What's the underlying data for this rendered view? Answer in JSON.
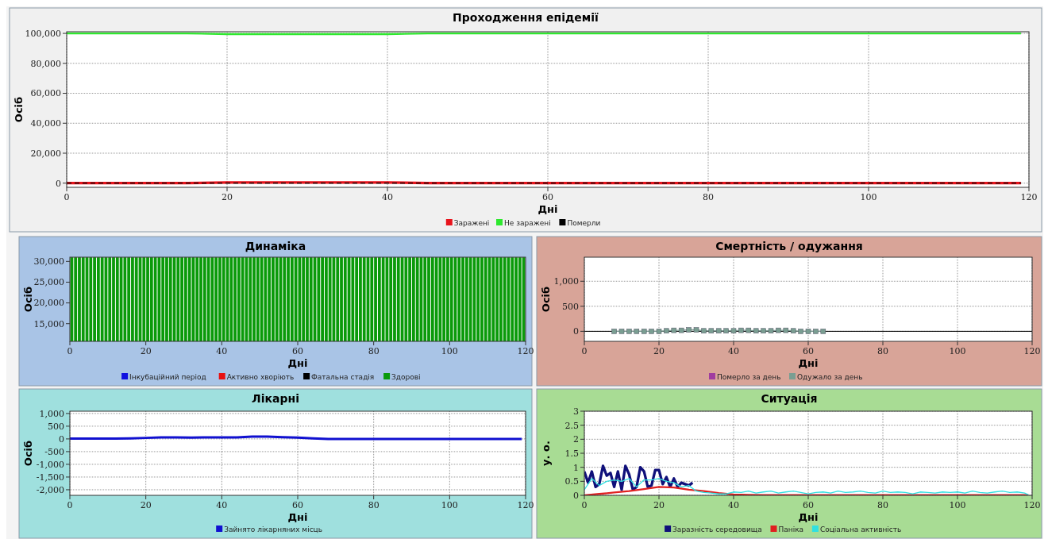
{
  "chart_data": [
    {
      "type": "line",
      "title": "Проходження епідемії",
      "xlabel": "Дні",
      "ylabel": "Осіб",
      "xlim": [
        0,
        120
      ],
      "xticks": [
        0,
        20,
        40,
        60,
        80,
        100,
        120
      ],
      "ylim": [
        -2800,
        101100
      ],
      "yticks": [
        0,
        {
          "value": 20000,
          "label": "20,000"
        },
        {
          "value": 40000,
          "label": "40,000"
        },
        {
          "value": 60000,
          "label": "60,000"
        },
        {
          "value": 80000,
          "label": "80,000"
        },
        {
          "value": 100000,
          "label": "100,000"
        }
      ],
      "grid": true,
      "legend": "bottom",
      "x": [
        0,
        5,
        10,
        15,
        20,
        25,
        30,
        35,
        40,
        45,
        50,
        55,
        60,
        65,
        70,
        75,
        80,
        85,
        90,
        95,
        100,
        105,
        110,
        115,
        119
      ],
      "series": [
        {
          "name": "Заражені",
          "color": "#e8141c",
          "values": [
            0,
            0,
            0,
            0,
            500,
            500,
            500,
            500,
            500,
            0,
            0,
            0,
            0,
            0,
            0,
            0,
            0,
            0,
            0,
            0,
            0,
            0,
            0,
            0,
            0
          ]
        },
        {
          "name": "Не заражені",
          "color": "#2ee82e",
          "values": [
            100000,
            100000,
            100000,
            100000,
            99500,
            99500,
            99500,
            99500,
            99500,
            100000,
            100000,
            100000,
            100000,
            100000,
            100000,
            100000,
            100000,
            100000,
            100000,
            100000,
            100000,
            100000,
            100000,
            100000,
            100000
          ]
        },
        {
          "name": "Померли",
          "color": "#000000",
          "line_style": "dashed",
          "values": [
            0,
            0,
            0,
            0,
            0,
            0,
            0,
            0,
            0,
            0,
            0,
            0,
            0,
            0,
            0,
            0,
            0,
            0,
            0,
            0,
            0,
            0,
            0,
            0,
            0
          ]
        }
      ]
    },
    {
      "type": "bar",
      "title": "Динаміка",
      "xlabel": "Дні",
      "ylabel": "Осіб",
      "xlim": [
        0,
        120
      ],
      "xticks": [
        0,
        20,
        40,
        60,
        80,
        100,
        120
      ],
      "ylim": [
        10740,
        31020
      ],
      "yticks": [
        {
          "value": 15000,
          "label": "15,000"
        },
        {
          "value": 20000,
          "label": "20,000"
        },
        {
          "value": 25000,
          "label": "25,000"
        },
        {
          "value": 30000,
          "label": "30,000"
        }
      ],
      "legend": "bottom",
      "x": [
        0,
        1,
        2,
        3,
        4,
        5,
        6,
        7,
        8,
        9,
        10,
        11,
        12,
        13,
        14,
        15,
        16,
        17,
        18,
        19,
        20,
        21,
        22,
        23,
        24,
        25,
        26,
        27,
        28,
        29,
        30,
        31,
        32,
        33,
        34,
        35,
        36,
        37,
        38,
        39,
        40,
        41,
        42,
        43,
        44,
        45,
        46,
        47,
        48,
        49,
        50,
        51,
        52,
        53,
        54,
        55,
        56,
        57,
        58,
        59,
        60,
        61,
        62,
        63,
        64,
        65,
        66,
        67,
        68,
        69,
        70,
        71,
        72,
        73,
        74,
        75,
        76,
        77,
        78,
        79,
        80,
        81,
        82,
        83,
        84,
        85,
        86,
        87,
        88,
        89,
        90,
        91,
        92,
        93,
        94,
        95,
        96,
        97,
        98,
        99,
        100,
        101,
        102,
        103,
        104,
        105,
        106,
        107,
        108,
        109,
        110,
        111,
        112,
        113,
        114,
        115,
        116,
        117,
        118,
        119
      ],
      "series": [
        {
          "name": "Інкубаційний період",
          "color": "#1010e0",
          "values": [
            null,
            null,
            null,
            null,
            null,
            null,
            null,
            null,
            null,
            null,
            null,
            null,
            null,
            null,
            null,
            null,
            null,
            null,
            null,
            null,
            null,
            null,
            null,
            null,
            null,
            null,
            null,
            null,
            null,
            null,
            null,
            null,
            null,
            null,
            null,
            null,
            null,
            null,
            null,
            null,
            null,
            null,
            null,
            null,
            null,
            null,
            null,
            null,
            null,
            null,
            null,
            null,
            null,
            null,
            null,
            null,
            null,
            null,
            null,
            null,
            null,
            null,
            null,
            null,
            null,
            null,
            null,
            null,
            null,
            null,
            null,
            null,
            null,
            null,
            null,
            null,
            null,
            null,
            null,
            null,
            null,
            null,
            null,
            null,
            null,
            null,
            null,
            null,
            null,
            null,
            null,
            null,
            null,
            null,
            null,
            null,
            null,
            null,
            null,
            null,
            null,
            null,
            null,
            null,
            null,
            null,
            null,
            null,
            null,
            null,
            null,
            null,
            null,
            null,
            null,
            null,
            null,
            null,
            null,
            null
          ]
        },
        {
          "name": "Активно хворіють",
          "color": "#e81010",
          "values": [
            null,
            null,
            null,
            null,
            null,
            null,
            null,
            null,
            null,
            null,
            null,
            null,
            null,
            null,
            null,
            null,
            null,
            null,
            null,
            null,
            null,
            null,
            null,
            null,
            null,
            null,
            null,
            null,
            null,
            null,
            null,
            null,
            null,
            null,
            null,
            null,
            null,
            null,
            null,
            null,
            null,
            null,
            null,
            null,
            null,
            null,
            null,
            null,
            null,
            null,
            null,
            null,
            null,
            null,
            null,
            null,
            null,
            null,
            null,
            null,
            null,
            null,
            null,
            null,
            null,
            null,
            null,
            null,
            null,
            null,
            null,
            null,
            null,
            null,
            null,
            null,
            null,
            null,
            null,
            null,
            null,
            null,
            null,
            null,
            null,
            null,
            null,
            null,
            null,
            null,
            null,
            null,
            null,
            null,
            null,
            null,
            null,
            null,
            null,
            null,
            null,
            null,
            null,
            null,
            null,
            null,
            null,
            null,
            null,
            null,
            null,
            null,
            null,
            null,
            null,
            null,
            null,
            null,
            null,
            null
          ]
        },
        {
          "name": "Фатальна стадія",
          "color": "#000000",
          "values": [
            null,
            null,
            null,
            null,
            null,
            null,
            null,
            null,
            null,
            null,
            null,
            null,
            null,
            null,
            null,
            null,
            null,
            null,
            null,
            null,
            null,
            null,
            null,
            null,
            null,
            null,
            null,
            null,
            null,
            null,
            null,
            null,
            null,
            null,
            null,
            null,
            null,
            null,
            null,
            null,
            null,
            null,
            null,
            null,
            null,
            null,
            null,
            null,
            null,
            null,
            null,
            null,
            null,
            null,
            null,
            null,
            null,
            null,
            null,
            null,
            null,
            null,
            null,
            null,
            null,
            null,
            null,
            null,
            null,
            null,
            null,
            null,
            null,
            null,
            null,
            null,
            null,
            null,
            null,
            null,
            null,
            null,
            null,
            null,
            null,
            null,
            null,
            null,
            null,
            null,
            null,
            null,
            null,
            null,
            null,
            null,
            null,
            null,
            null,
            null,
            null,
            null,
            null,
            null,
            null,
            null,
            null,
            null,
            null,
            null,
            null,
            null,
            null,
            null,
            null,
            null,
            null,
            null,
            null,
            null
          ]
        },
        {
          "name": "Здорові",
          "color": "#0a9a0a",
          "values": [
            31000,
            31000,
            31000,
            31000,
            31000,
            31000,
            31000,
            31000,
            31000,
            31000,
            31000,
            31000,
            31000,
            31000,
            31000,
            31000,
            31000,
            31000,
            31000,
            31000,
            31000,
            31000,
            31000,
            31000,
            31000,
            31000,
            31000,
            31000,
            31000,
            31000,
            31000,
            31000,
            31000,
            31000,
            31000,
            31000,
            31000,
            31000,
            31000,
            31000,
            31000,
            31000,
            31000,
            31000,
            31000,
            31000,
            31000,
            31000,
            31000,
            31000,
            31000,
            31000,
            31000,
            31000,
            31000,
            31000,
            31000,
            31000,
            31000,
            31000,
            31000,
            31000,
            31000,
            31000,
            31000,
            31000,
            31000,
            31000,
            31000,
            31000,
            31000,
            31000,
            31000,
            31000,
            31000,
            31000,
            31000,
            31000,
            31000,
            31000,
            31000,
            31000,
            31000,
            31000,
            31000,
            31000,
            31000,
            31000,
            31000,
            31000,
            31000,
            31000,
            31000,
            31000,
            31000,
            31000,
            31000,
            31000,
            31000,
            31000,
            31000,
            31000,
            31000,
            31000,
            31000,
            31000,
            31000,
            31000,
            31000,
            31000,
            31000,
            31000,
            31000,
            31000,
            31000,
            31000,
            31000,
            31000,
            31000,
            31000
          ]
        }
      ]
    },
    {
      "type": "line",
      "title": "Смертність / одужання",
      "xlabel": "Дні",
      "ylabel": "Осіб",
      "xlim": [
        0,
        120
      ],
      "xticks": [
        0,
        20,
        40,
        60,
        80,
        100,
        120
      ],
      "ylim": [
        -200,
        1480
      ],
      "yticks": [
        0,
        500,
        {
          "value": 1000,
          "label": "1,000"
        }
      ],
      "grid": true,
      "legend": "bottom",
      "marker": "square",
      "ref_lines": [
        {
          "axis": "y",
          "value": 0,
          "color": "#000000"
        }
      ],
      "x": [
        8,
        10,
        12,
        14,
        16,
        18,
        20,
        22,
        24,
        26,
        28,
        30,
        32,
        34,
        36,
        38,
        40,
        42,
        44,
        46,
        48,
        50,
        52,
        54,
        56,
        58,
        60,
        62,
        64
      ],
      "series": [
        {
          "name": "Померло за день",
          "color": "#a03ca0",
          "values": [
            null,
            null,
            null,
            null,
            null,
            null,
            null,
            null,
            null,
            null,
            null,
            null,
            null,
            null,
            null,
            null,
            null,
            null,
            null,
            null,
            null,
            null,
            null,
            null,
            null,
            null,
            null,
            null,
            null
          ]
        },
        {
          "name": "Одужало за день",
          "color": "#7a9e92",
          "values": [
            0,
            0,
            0,
            0,
            0,
            0,
            0,
            10,
            20,
            20,
            30,
            30,
            10,
            10,
            10,
            10,
            10,
            20,
            20,
            10,
            10,
            10,
            20,
            20,
            10,
            0,
            0,
            0,
            0
          ]
        }
      ]
    },
    {
      "type": "line",
      "title": "Лікарні",
      "xlabel": "Дні",
      "ylabel": "Осіб",
      "xlim": [
        0,
        120
      ],
      "xticks": [
        0,
        20,
        40,
        60,
        80,
        100,
        120
      ],
      "ylim": [
        -2220,
        1090
      ],
      "yticks": [
        {
          "value": -2000,
          "label": "-2,000"
        },
        {
          "value": -1500,
          "label": "-1,500"
        },
        {
          "value": -1000,
          "label": "-1,000"
        },
        -500,
        0,
        500,
        {
          "value": 1000,
          "label": "1,000"
        }
      ],
      "grid": true,
      "legend": "bottom",
      "x": [
        0,
        4,
        8,
        12,
        16,
        20,
        24,
        28,
        32,
        36,
        40,
        44,
        48,
        52,
        56,
        60,
        64,
        68,
        72,
        76,
        80,
        84,
        88,
        92,
        96,
        100,
        104,
        108,
        112,
        116,
        119
      ],
      "series": [
        {
          "name": "Зайнято лікарняних місць",
          "color": "#1010d0",
          "values": [
            10,
            10,
            10,
            10,
            20,
            40,
            60,
            60,
            50,
            60,
            60,
            60,
            90,
            90,
            70,
            50,
            20,
            0,
            0,
            0,
            0,
            0,
            0,
            0,
            0,
            0,
            0,
            0,
            0,
            0,
            0
          ]
        }
      ]
    },
    {
      "type": "line",
      "title": "Ситуація",
      "xlabel": "Дні",
      "ylabel": "у. о.",
      "xlim": [
        0,
        120
      ],
      "xticks": [
        0,
        20,
        40,
        60,
        80,
        100,
        120
      ],
      "ylim": [
        0,
        3
      ],
      "yticks": [
        0,
        0.5,
        1,
        1.5,
        2,
        2.5,
        3
      ],
      "grid": true,
      "legend": "bottom",
      "series": [
        {
          "name": "Заразність середовища",
          "color": "#10107a",
          "x": [
            0,
            1,
            2,
            3,
            4,
            5,
            6,
            7,
            8,
            9,
            10,
            11,
            12,
            13,
            14,
            15,
            16,
            17,
            18,
            19,
            20,
            21,
            22,
            23,
            24,
            25,
            26,
            27,
            28,
            29
          ],
          "values": [
            0.85,
            0.45,
            0.85,
            0.3,
            0.4,
            1.05,
            0.7,
            0.8,
            0.3,
            0.85,
            0.2,
            1.05,
            0.75,
            0.2,
            0.3,
            1.0,
            0.85,
            0.3,
            0.35,
            0.9,
            0.9,
            0.4,
            0.65,
            0.3,
            0.6,
            0.3,
            0.45,
            0.4,
            0.35,
            0.45
          ]
        },
        {
          "name": "Паніка",
          "color": "#e02020",
          "x": [
            0,
            4,
            8,
            12,
            16,
            20,
            24,
            28,
            32,
            36,
            40,
            44,
            48,
            52,
            56,
            60,
            64,
            68,
            72,
            76,
            80,
            84,
            88,
            92,
            96,
            100,
            104,
            108,
            112,
            116,
            119
          ],
          "values": [
            0,
            0.05,
            0.1,
            0.15,
            0.22,
            0.3,
            0.28,
            0.2,
            0.15,
            0.08,
            0.03,
            0.02,
            0.01,
            0.01,
            0.01,
            0.01,
            0.01,
            0.01,
            0.01,
            0.01,
            0.01,
            0.01,
            0.01,
            0.01,
            0.01,
            0.01,
            0.01,
            0.01,
            0.01,
            0.01,
            0.01
          ]
        },
        {
          "name": "Соціальна активність",
          "color": "#30e0e0",
          "x": [
            0,
            2,
            4,
            6,
            8,
            10,
            12,
            14,
            16,
            18,
            20,
            22,
            24,
            26,
            28,
            30,
            32,
            34,
            36,
            38,
            40,
            42,
            44,
            46,
            48,
            50,
            52,
            54,
            56,
            58,
            60,
            62,
            64,
            66,
            68,
            70,
            72,
            74,
            76,
            78,
            80,
            82,
            84,
            86,
            88,
            90,
            92,
            94,
            96,
            98,
            100,
            102,
            104,
            106,
            108,
            110,
            112,
            114,
            116,
            118,
            119
          ],
          "values": [
            0.2,
            0.6,
            0.35,
            0.5,
            0.55,
            0.5,
            0.6,
            0.3,
            0.55,
            0.55,
            0.6,
            0.5,
            0.45,
            0.3,
            0.35,
            0.15,
            0.1,
            0.08,
            0.05,
            0.05,
            0.12,
            0.1,
            0.15,
            0.08,
            0.12,
            0.15,
            0.08,
            0.12,
            0.15,
            0.1,
            0.05,
            0.1,
            0.12,
            0.08,
            0.15,
            0.1,
            0.12,
            0.15,
            0.1,
            0.08,
            0.15,
            0.1,
            0.12,
            0.1,
            0.05,
            0.12,
            0.1,
            0.08,
            0.12,
            0.1,
            0.12,
            0.08,
            0.15,
            0.1,
            0.08,
            0.12,
            0.15,
            0.1,
            0.12,
            0.08,
            0.02
          ]
        }
      ]
    }
  ]
}
